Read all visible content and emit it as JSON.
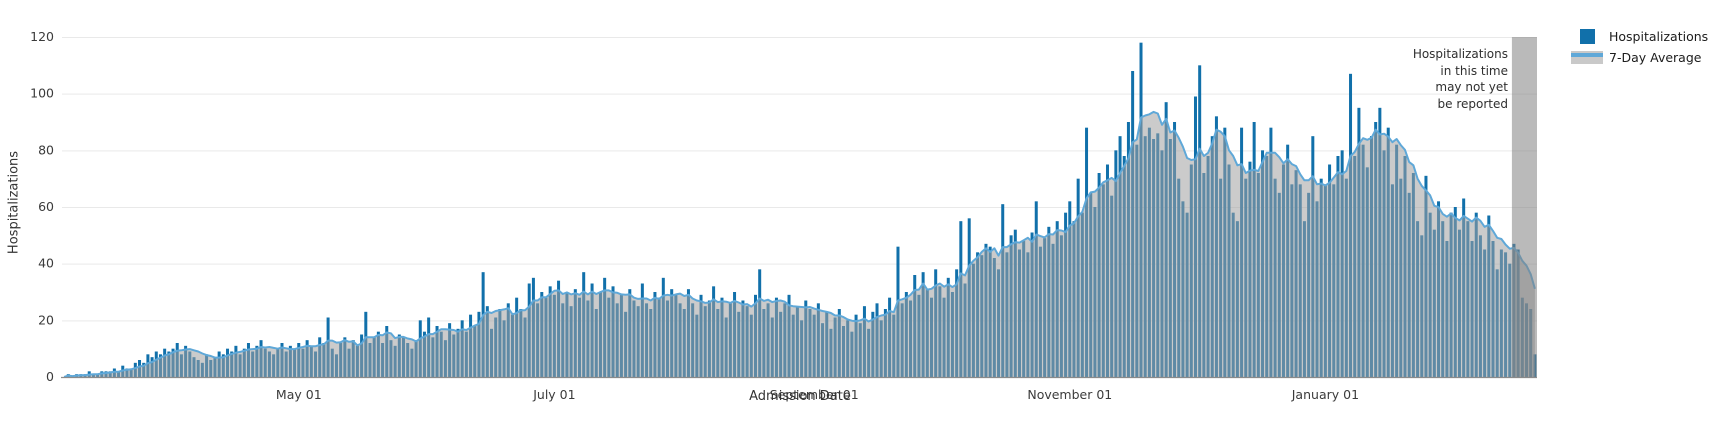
{
  "chart_data": {
    "type": "bar",
    "title": "",
    "xlabel": "Admission Date",
    "ylabel": "Hospitalizations",
    "ylim": [
      0,
      120
    ],
    "y_ticks": [
      0,
      20,
      40,
      60,
      80,
      100,
      120
    ],
    "grid": true,
    "legend_position": "top-right",
    "x_ticks": [
      {
        "label": "May 01",
        "index": 56
      },
      {
        "label": "July 01",
        "index": 117
      },
      {
        "label": "September 01",
        "index": 179
      },
      {
        "label": "November 01",
        "index": 240
      },
      {
        "label": "January 01",
        "index": 301
      }
    ],
    "series": [
      {
        "name": "Hospitalizations",
        "type": "bar",
        "color": "#1170aa",
        "values": [
          0,
          1,
          0,
          1,
          1,
          1,
          2,
          1,
          1,
          2,
          2,
          2,
          3,
          2,
          4,
          3,
          3,
          5,
          6,
          5,
          8,
          7,
          9,
          8,
          10,
          9,
          10,
          12,
          8,
          11,
          9,
          7,
          6,
          5,
          8,
          6,
          7,
          9,
          8,
          10,
          9,
          11,
          8,
          10,
          12,
          9,
          11,
          13,
          10,
          9,
          8,
          10,
          12,
          9,
          11,
          10,
          12,
          10,
          13,
          11,
          9,
          14,
          12,
          21,
          10,
          8,
          12,
          14,
          10,
          13,
          11,
          15,
          23,
          12,
          14,
          16,
          12,
          18,
          13,
          11,
          15,
          14,
          12,
          10,
          13,
          20,
          16,
          21,
          14,
          18,
          16,
          13,
          19,
          15,
          17,
          20,
          16,
          22,
          18,
          23,
          37,
          25,
          17,
          21,
          24,
          20,
          26,
          22,
          28,
          24,
          21,
          33,
          35,
          26,
          30,
          28,
          32,
          29,
          34,
          26,
          30,
          25,
          31,
          28,
          37,
          27,
          33,
          24,
          30,
          35,
          28,
          32,
          26,
          29,
          23,
          31,
          27,
          25,
          33,
          26,
          24,
          30,
          28,
          35,
          27,
          31,
          29,
          26,
          24,
          31,
          26,
          22,
          29,
          25,
          27,
          32,
          24,
          28,
          21,
          26,
          30,
          23,
          27,
          25,
          22,
          29,
          38,
          24,
          26,
          21,
          28,
          23,
          26,
          29,
          22,
          25,
          20,
          27,
          24,
          22,
          26,
          19,
          23,
          17,
          21,
          24,
          18,
          20,
          16,
          22,
          19,
          25,
          17,
          23,
          26,
          20,
          24,
          28,
          22,
          46,
          26,
          30,
          27,
          36,
          29,
          37,
          31,
          28,
          38,
          32,
          28,
          35,
          30,
          38,
          55,
          33,
          56,
          40,
          44,
          43,
          47,
          46,
          42,
          38,
          61,
          44,
          50,
          52,
          45,
          48,
          44,
          51,
          62,
          46,
          49,
          53,
          47,
          55,
          50,
          58,
          62,
          55,
          70,
          58,
          88,
          65,
          60,
          72,
          68,
          75,
          64,
          80,
          85,
          78,
          90,
          108,
          82,
          118,
          85,
          88,
          84,
          86,
          80,
          97,
          84,
          90,
          70,
          62,
          58,
          75,
          99,
          110,
          72,
          78,
          85,
          92,
          70,
          88,
          75,
          58,
          55,
          88,
          70,
          76,
          90,
          72,
          80,
          78,
          88,
          70,
          65,
          75,
          82,
          68,
          73,
          68,
          55,
          65,
          85,
          62,
          70,
          68,
          75,
          68,
          78,
          80,
          70,
          107,
          78,
          95,
          82,
          74,
          85,
          90,
          95,
          80,
          88,
          68,
          82,
          70,
          78,
          65,
          72,
          55,
          50,
          71,
          58,
          52,
          62,
          55,
          48,
          58,
          60,
          52,
          63,
          55,
          48,
          58,
          50,
          45,
          57,
          48,
          38,
          45,
          44,
          40,
          47,
          45,
          28,
          26,
          24,
          8
        ]
      },
      {
        "name": "7-Day Average",
        "type": "area+line",
        "derived": "trailing 7-day mean of Hospitalizations",
        "line_color": "#5fa8d8",
        "fill_color": "rgba(160,160,160,0.55)"
      }
    ],
    "unreported_band": {
      "start_index": 346,
      "end_index": 351,
      "color": "rgba(130,130,130,0.55)",
      "note": "Hospitalizations\nin this time\nmay not yet\nbe reported"
    },
    "colors": {
      "bar": "#1170aa",
      "average_line": "#5fa8d8",
      "average_fill_gray": "#c9c9c9",
      "gridline": "#e9e9e9",
      "axis_line": "#8a8a8a",
      "tick_text": "#3b3b3b"
    }
  }
}
